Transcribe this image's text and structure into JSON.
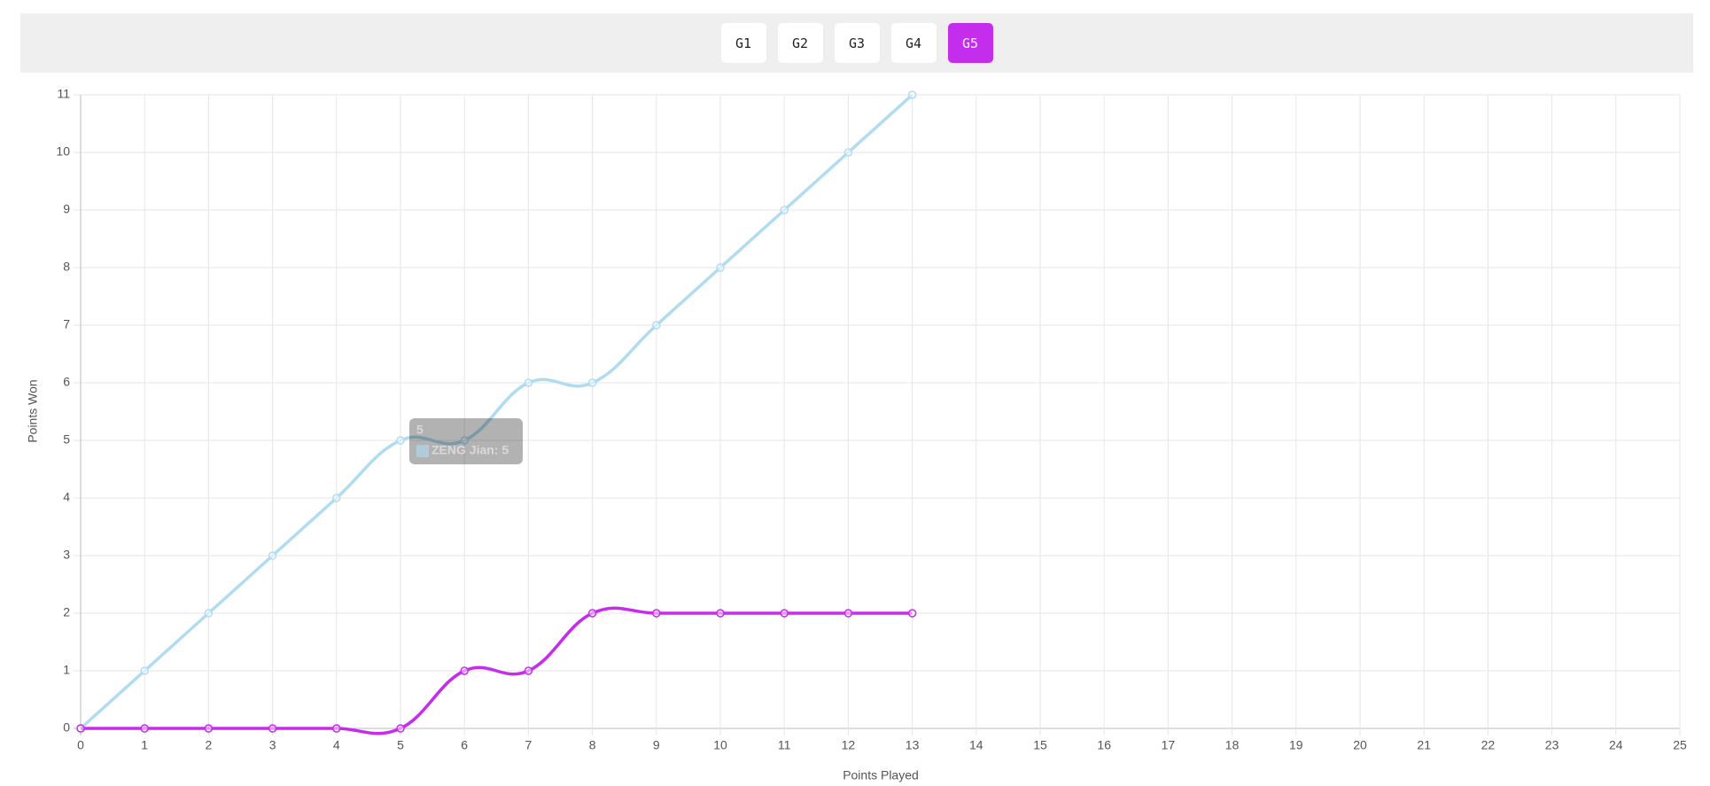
{
  "tabs": [
    "G1",
    "G2",
    "G3",
    "G4",
    "G5"
  ],
  "active_tab": 4,
  "chart_data": {
    "type": "line",
    "x_label": "Points Played",
    "y_label": "Points Won",
    "x": [
      0,
      1,
      2,
      3,
      4,
      5,
      6,
      7,
      8,
      9,
      10,
      11,
      12,
      13
    ],
    "series": [
      {
        "name": "ZENG Jian",
        "color": "#b0dcf2",
        "values": [
          0,
          1,
          2,
          3,
          4,
          5,
          5,
          6,
          6,
          7,
          8,
          9,
          10,
          11
        ]
      },
      {
        "color": "#c52ded",
        "values": [
          0,
          0,
          0,
          0,
          0,
          0,
          1,
          1,
          2,
          2,
          2,
          2,
          2,
          2
        ]
      }
    ],
    "xlim": [
      0,
      25
    ],
    "xticks": [
      0,
      1,
      2,
      3,
      4,
      5,
      6,
      7,
      8,
      9,
      10,
      11,
      12,
      13,
      14,
      15,
      16,
      17,
      18,
      19,
      20,
      21,
      22,
      23,
      24,
      25
    ],
    "ylim": [
      0,
      11
    ],
    "yticks": [
      0,
      1,
      2,
      3,
      4,
      5,
      6,
      7,
      8,
      9,
      10,
      11
    ],
    "grid": true,
    "tooltip": {
      "title": "5",
      "label": "ZENG Jian: 5",
      "series": 0,
      "index": 5
    }
  }
}
